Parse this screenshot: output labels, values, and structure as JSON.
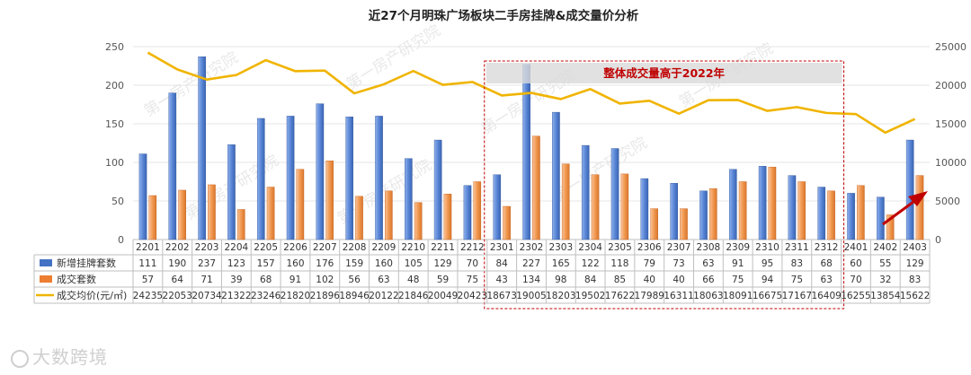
{
  "chart_data": {
    "type": "bar+line",
    "title": "近27个月明珠广场板块二手房挂牌&成交量价分析",
    "categories": [
      "2201",
      "2202",
      "2203",
      "2204",
      "2205",
      "2206",
      "2207",
      "2208",
      "2209",
      "2210",
      "2211",
      "2212",
      "2301",
      "2302",
      "2303",
      "2304",
      "2305",
      "2306",
      "2307",
      "2308",
      "2309",
      "2310",
      "2311",
      "2312",
      "2401",
      "2402",
      "2403"
    ],
    "series": [
      {
        "name": "新增挂牌套数",
        "type": "bar",
        "axis": "left",
        "color": "#4472c4",
        "values": [
          111,
          190,
          237,
          123,
          157,
          160,
          176,
          159,
          160,
          105,
          129,
          70,
          84,
          227,
          165,
          122,
          118,
          79,
          73,
          63,
          91,
          95,
          83,
          68,
          60,
          55,
          129
        ]
      },
      {
        "name": "成交套数",
        "type": "bar",
        "axis": "left",
        "color": "#ed7d31",
        "values": [
          57,
          64,
          71,
          39,
          68,
          91,
          102,
          56,
          63,
          48,
          59,
          75,
          43,
          134,
          98,
          84,
          85,
          40,
          40,
          66,
          75,
          94,
          75,
          63,
          70,
          32,
          83
        ]
      },
      {
        "name": "成交均价(元/㎡)",
        "type": "line",
        "axis": "right",
        "color": "#f0b400",
        "values": [
          24235,
          22053,
          20734,
          21322,
          23246,
          21820,
          21896,
          18946,
          20122,
          21846,
          20049,
          20423,
          18673,
          19005,
          18203,
          19502,
          17622,
          17989,
          16311,
          18063,
          18091,
          16675,
          17167,
          16409,
          16255,
          13854,
          15622
        ]
      }
    ],
    "y_left": {
      "ticks": [
        "0",
        "50",
        "100",
        "150",
        "200",
        "250"
      ],
      "min": 0,
      "max": 250
    },
    "y_right": {
      "ticks": [
        "0",
        "5000",
        "10000",
        "15000",
        "20000",
        "25000"
      ],
      "min": 0,
      "max": 25000
    },
    "annotation": {
      "text": "整体成交量高于2022年",
      "from": "2301",
      "to": "2312"
    },
    "watermarks": [
      "第一房产研究院",
      "第一房产研究院",
      "第一房产研究院",
      "第一房产研究院",
      "第一房产研究院",
      "第一房产研究院",
      "第一房产研究院"
    ],
    "logo_text": "大数跨境"
  }
}
